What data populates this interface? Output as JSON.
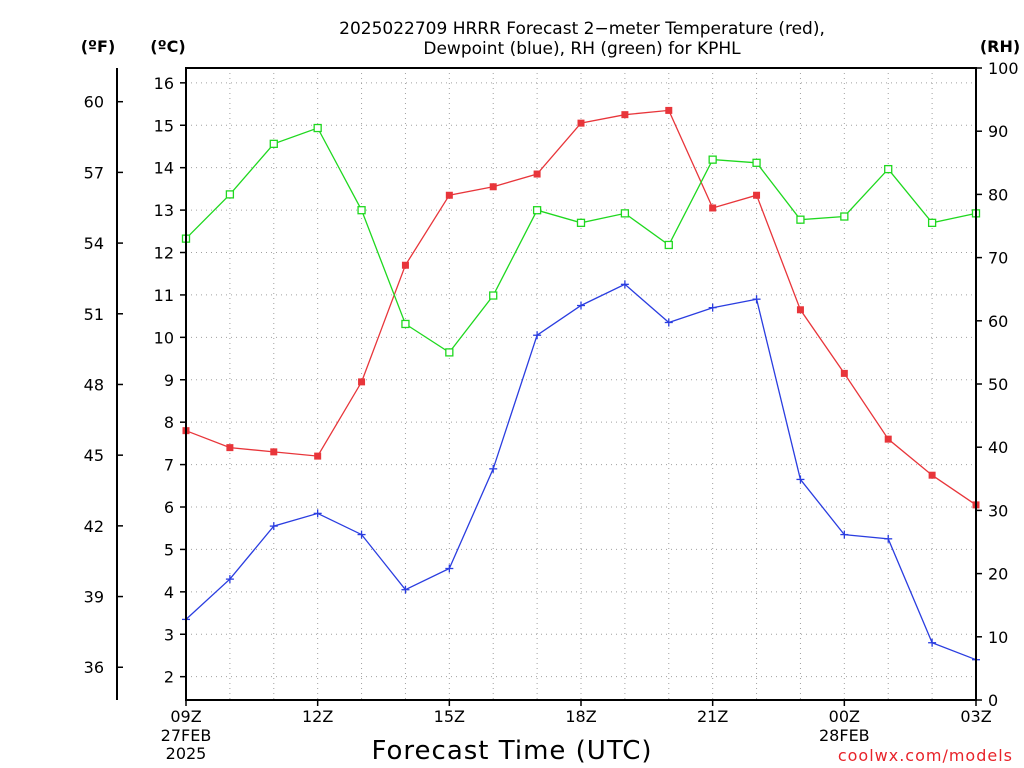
{
  "header": {
    "title_line1": "2025022709 HRRR Forecast 2−meter Temperature (red),",
    "title_line2": "Dewpoint (blue), RH (green) for KPHL",
    "unit_f": "(ºF)",
    "unit_c": "(ºC)",
    "unit_rh": "(RH)"
  },
  "footer": {
    "xlabel": "Forecast Time (UTC)",
    "credit": "coolwx.com/models"
  },
  "colors": {
    "temperature": "#e8353a",
    "dewpoint": "#2a3de0",
    "rh": "#1fd81f",
    "axis": "#000000",
    "grid": "#a0a0a0"
  },
  "chart_data": {
    "type": "line",
    "x": [
      "09Z",
      "10Z",
      "11Z",
      "12Z",
      "13Z",
      "14Z",
      "15Z",
      "16Z",
      "17Z",
      "18Z",
      "19Z",
      "20Z",
      "21Z",
      "22Z",
      "23Z",
      "00Z",
      "01Z",
      "02Z",
      "03Z"
    ],
    "x_ticks": [
      {
        "label": "09Z",
        "sub1": "27FEB",
        "sub2": "2025"
      },
      {
        "label": "12Z",
        "sub1": "",
        "sub2": ""
      },
      {
        "label": "15Z",
        "sub1": "",
        "sub2": ""
      },
      {
        "label": "18Z",
        "sub1": "",
        "sub2": ""
      },
      {
        "label": "21Z",
        "sub1": "",
        "sub2": ""
      },
      {
        "label": "00Z",
        "sub1": "28FEB",
        "sub2": ""
      },
      {
        "label": "03Z",
        "sub1": "",
        "sub2": ""
      }
    ],
    "x_tick_index": [
      0,
      3,
      6,
      9,
      12,
      15,
      18
    ],
    "left_axis_c": {
      "ylim": [
        1.45,
        16.35
      ],
      "ticks": [
        2,
        3,
        4,
        5,
        6,
        7,
        8,
        9,
        10,
        11,
        12,
        13,
        14,
        15,
        16
      ]
    },
    "left_axis_f": {
      "ticks": [
        36,
        39,
        42,
        45,
        48,
        51,
        54,
        57,
        60
      ]
    },
    "right_axis_rh": {
      "ylim": [
        0,
        100
      ],
      "ticks": [
        0,
        10,
        20,
        30,
        40,
        50,
        60,
        70,
        80,
        90,
        100
      ]
    },
    "grid": true,
    "series": [
      {
        "name": "Temperature (red)",
        "axis": "c",
        "marker": "filled-square",
        "values": [
          7.8,
          7.4,
          7.3,
          7.2,
          8.95,
          11.7,
          13.35,
          13.55,
          13.85,
          15.05,
          15.25,
          15.35,
          13.05,
          13.35,
          10.65,
          9.15,
          7.6,
          6.75,
          6.05
        ]
      },
      {
        "name": "Dewpoint (blue)",
        "axis": "c",
        "marker": "plus",
        "values": [
          3.35,
          4.3,
          5.55,
          5.85,
          5.35,
          4.05,
          4.55,
          6.9,
          10.05,
          10.75,
          11.25,
          10.35,
          10.7,
          10.9,
          6.65,
          5.35,
          5.25,
          2.8,
          2.4
        ]
      },
      {
        "name": "RH (green)",
        "axis": "rh",
        "marker": "open-square",
        "values": [
          73,
          80,
          88,
          90.5,
          77.5,
          59.5,
          55,
          64,
          77.5,
          75.5,
          77,
          72,
          85.5,
          85,
          76,
          76.5,
          84,
          75.5,
          77
        ]
      }
    ]
  }
}
